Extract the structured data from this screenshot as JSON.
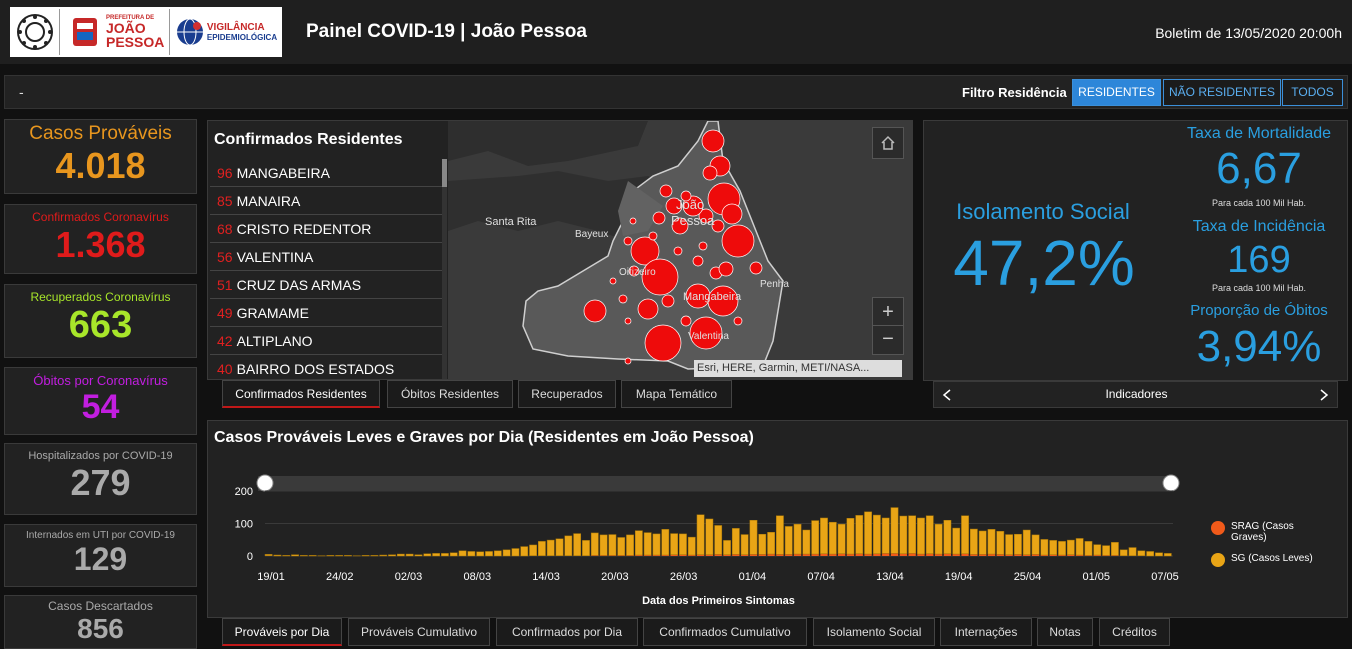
{
  "header": {
    "title": "Painel COVID-19 | João Pessoa",
    "bulletin": "Boletim de 13/05/2020 20:00h",
    "logo_prefeitura": "JOÃO PESSOA",
    "logo_prefeitura_sub": "PREFEITURA DE",
    "logo_vigilancia_line1": "VIGILÂNCIA",
    "logo_vigilancia_line2": "EPIDEMIOLÓGICA"
  },
  "filter": {
    "dash": "-",
    "label": "Filtro Residência",
    "buttons": [
      "RESIDENTES",
      "NÃO RESIDENTES",
      "TODOS"
    ]
  },
  "cards": [
    {
      "label": "Casos Prováveis",
      "value": "4.018",
      "color": "#e8961e"
    },
    {
      "label": "Confirmados Coronavírus",
      "value": "1.368",
      "color": "#e01b1b"
    },
    {
      "label": "Recuperados Coronavírus",
      "value": "663",
      "color": "#a8e62a"
    },
    {
      "label": "Óbitos por Coronavírus",
      "value": "54",
      "color": "#c21ee0"
    },
    {
      "label": "Hospitalizados por COVID-19",
      "value": "279",
      "color": "#aaaaaa"
    },
    {
      "label": "Internados em UTI por COVID-19",
      "value": "129",
      "color": "#aaaaaa"
    },
    {
      "label": "Casos Descartados",
      "value": "856",
      "color": "#aaaaaa"
    }
  ],
  "residents_list": {
    "title": "Confirmados Residentes",
    "rows": [
      {
        "count": "96",
        "name": "MANGABEIRA"
      },
      {
        "count": "85",
        "name": "MANAIRA"
      },
      {
        "count": "68",
        "name": "CRISTO REDENTOR"
      },
      {
        "count": "56",
        "name": "VALENTINA"
      },
      {
        "count": "51",
        "name": "CRUZ DAS ARMAS"
      },
      {
        "count": "49",
        "name": "GRAMAME"
      },
      {
        "count": "42",
        "name": "ALTIPLANO"
      },
      {
        "count": "40",
        "name": "BAIRRO DOS ESTADOS"
      }
    ]
  },
  "map": {
    "labels": [
      "Santa Rita",
      "Bayeux",
      "João",
      "Pessoa",
      "Oitizeiro",
      "Mangabeira",
      "Penha",
      "Valentina"
    ],
    "attribution": "Esri, HERE, Garmin, METI/NASA..."
  },
  "map_tabs": [
    "Confirmados Residentes",
    "Óbitos Residentes",
    "Recuperados",
    "Mapa Temático"
  ],
  "indicators": {
    "isolation_label": "Isolamento Social",
    "isolation_value": "47,2%",
    "mortality_label": "Taxa de Mortalidade",
    "mortality_value": "6,67",
    "mortality_note": "Para cada 100 Mil Hab.",
    "incidence_label": "Taxa de Incidência",
    "incidence_value": "169",
    "incidence_note": "Para cada 100 Mil Hab.",
    "death_prop_label": "Proporção de Óbitos",
    "death_prop_value": "3,94%",
    "nav_label": "Indicadores"
  },
  "chart_data": {
    "type": "bar",
    "stacked": true,
    "title": "Casos Prováveis Leves e Graves por Dia (Residentes em João Pessoa)",
    "xlabel": "Data dos Primeiros Sintomas",
    "ylabel": "",
    "ylim": [
      0,
      200
    ],
    "yticks": [
      "0",
      "100",
      "200"
    ],
    "xtick_labels": [
      "19/01",
      "24/02",
      "02/03",
      "08/03",
      "14/03",
      "20/03",
      "26/03",
      "01/04",
      "07/04",
      "13/04",
      "19/04",
      "25/04",
      "01/05",
      "07/05"
    ],
    "series": [
      {
        "name": "SRAG (Casos Graves)",
        "color": "#f05a1a",
        "values": [
          1,
          0,
          0,
          0,
          0,
          0,
          0,
          0,
          0,
          0,
          0,
          0,
          0,
          0,
          0,
          0,
          0,
          0,
          0,
          0,
          0,
          0,
          0,
          0,
          0,
          0,
          0,
          0,
          0,
          0,
          1,
          1,
          1,
          1,
          1,
          1,
          1,
          2,
          2,
          2,
          2,
          2,
          3,
          3,
          3,
          3,
          4,
          4,
          3,
          4,
          4,
          5,
          4,
          5,
          4,
          5,
          5,
          6,
          5,
          5,
          6,
          6,
          6,
          7,
          6,
          7,
          6,
          7,
          6,
          7,
          8,
          8,
          7,
          8,
          6,
          7,
          6,
          7,
          6,
          7,
          5,
          5,
          6,
          5,
          4,
          5,
          4,
          5,
          3,
          4,
          3,
          4,
          3,
          2,
          3,
          2,
          2,
          1,
          1,
          1,
          0,
          0,
          0
        ]
      },
      {
        "name": "SG (Casos Leves)",
        "color": "#e9a516",
        "values": [
          4,
          3,
          2,
          4,
          2,
          2,
          1,
          2,
          2,
          2,
          1,
          2,
          2,
          3,
          4,
          6,
          6,
          4,
          7,
          8,
          8,
          10,
          16,
          14,
          13,
          14,
          16,
          19,
          23,
          29,
          33,
          44,
          48,
          52,
          61,
          68,
          47,
          69,
          63,
          64,
          55,
          63,
          75,
          69,
          65,
          79,
          65,
          64,
          55,
          123,
          110,
          89,
          44,
          80,
          62,
          105,
          62,
          67,
          119,
          86,
          92,
          74,
          103,
          110,
          98,
          91,
          110,
          118,
          130,
          119,
          109,
          141,
          116,
          116,
          111,
          117,
          92,
          103,
          80,
          117,
          78,
          72,
          76,
          71,
          62,
          62,
          76,
          60,
          48,
          44,
          42,
          45,
          51,
          43,
          32,
          30,
          40,
          18,
          25,
          15,
          14,
          10,
          8
        ]
      }
    ],
    "legend_position": "right"
  },
  "chart_tabs": [
    "Prováveis por Dia",
    "Prováveis Cumulativo",
    "Confirmados por Dia",
    "Confirmados Cumulativo",
    "Isolamento Social",
    "Internações",
    "Notas",
    "Créditos"
  ]
}
